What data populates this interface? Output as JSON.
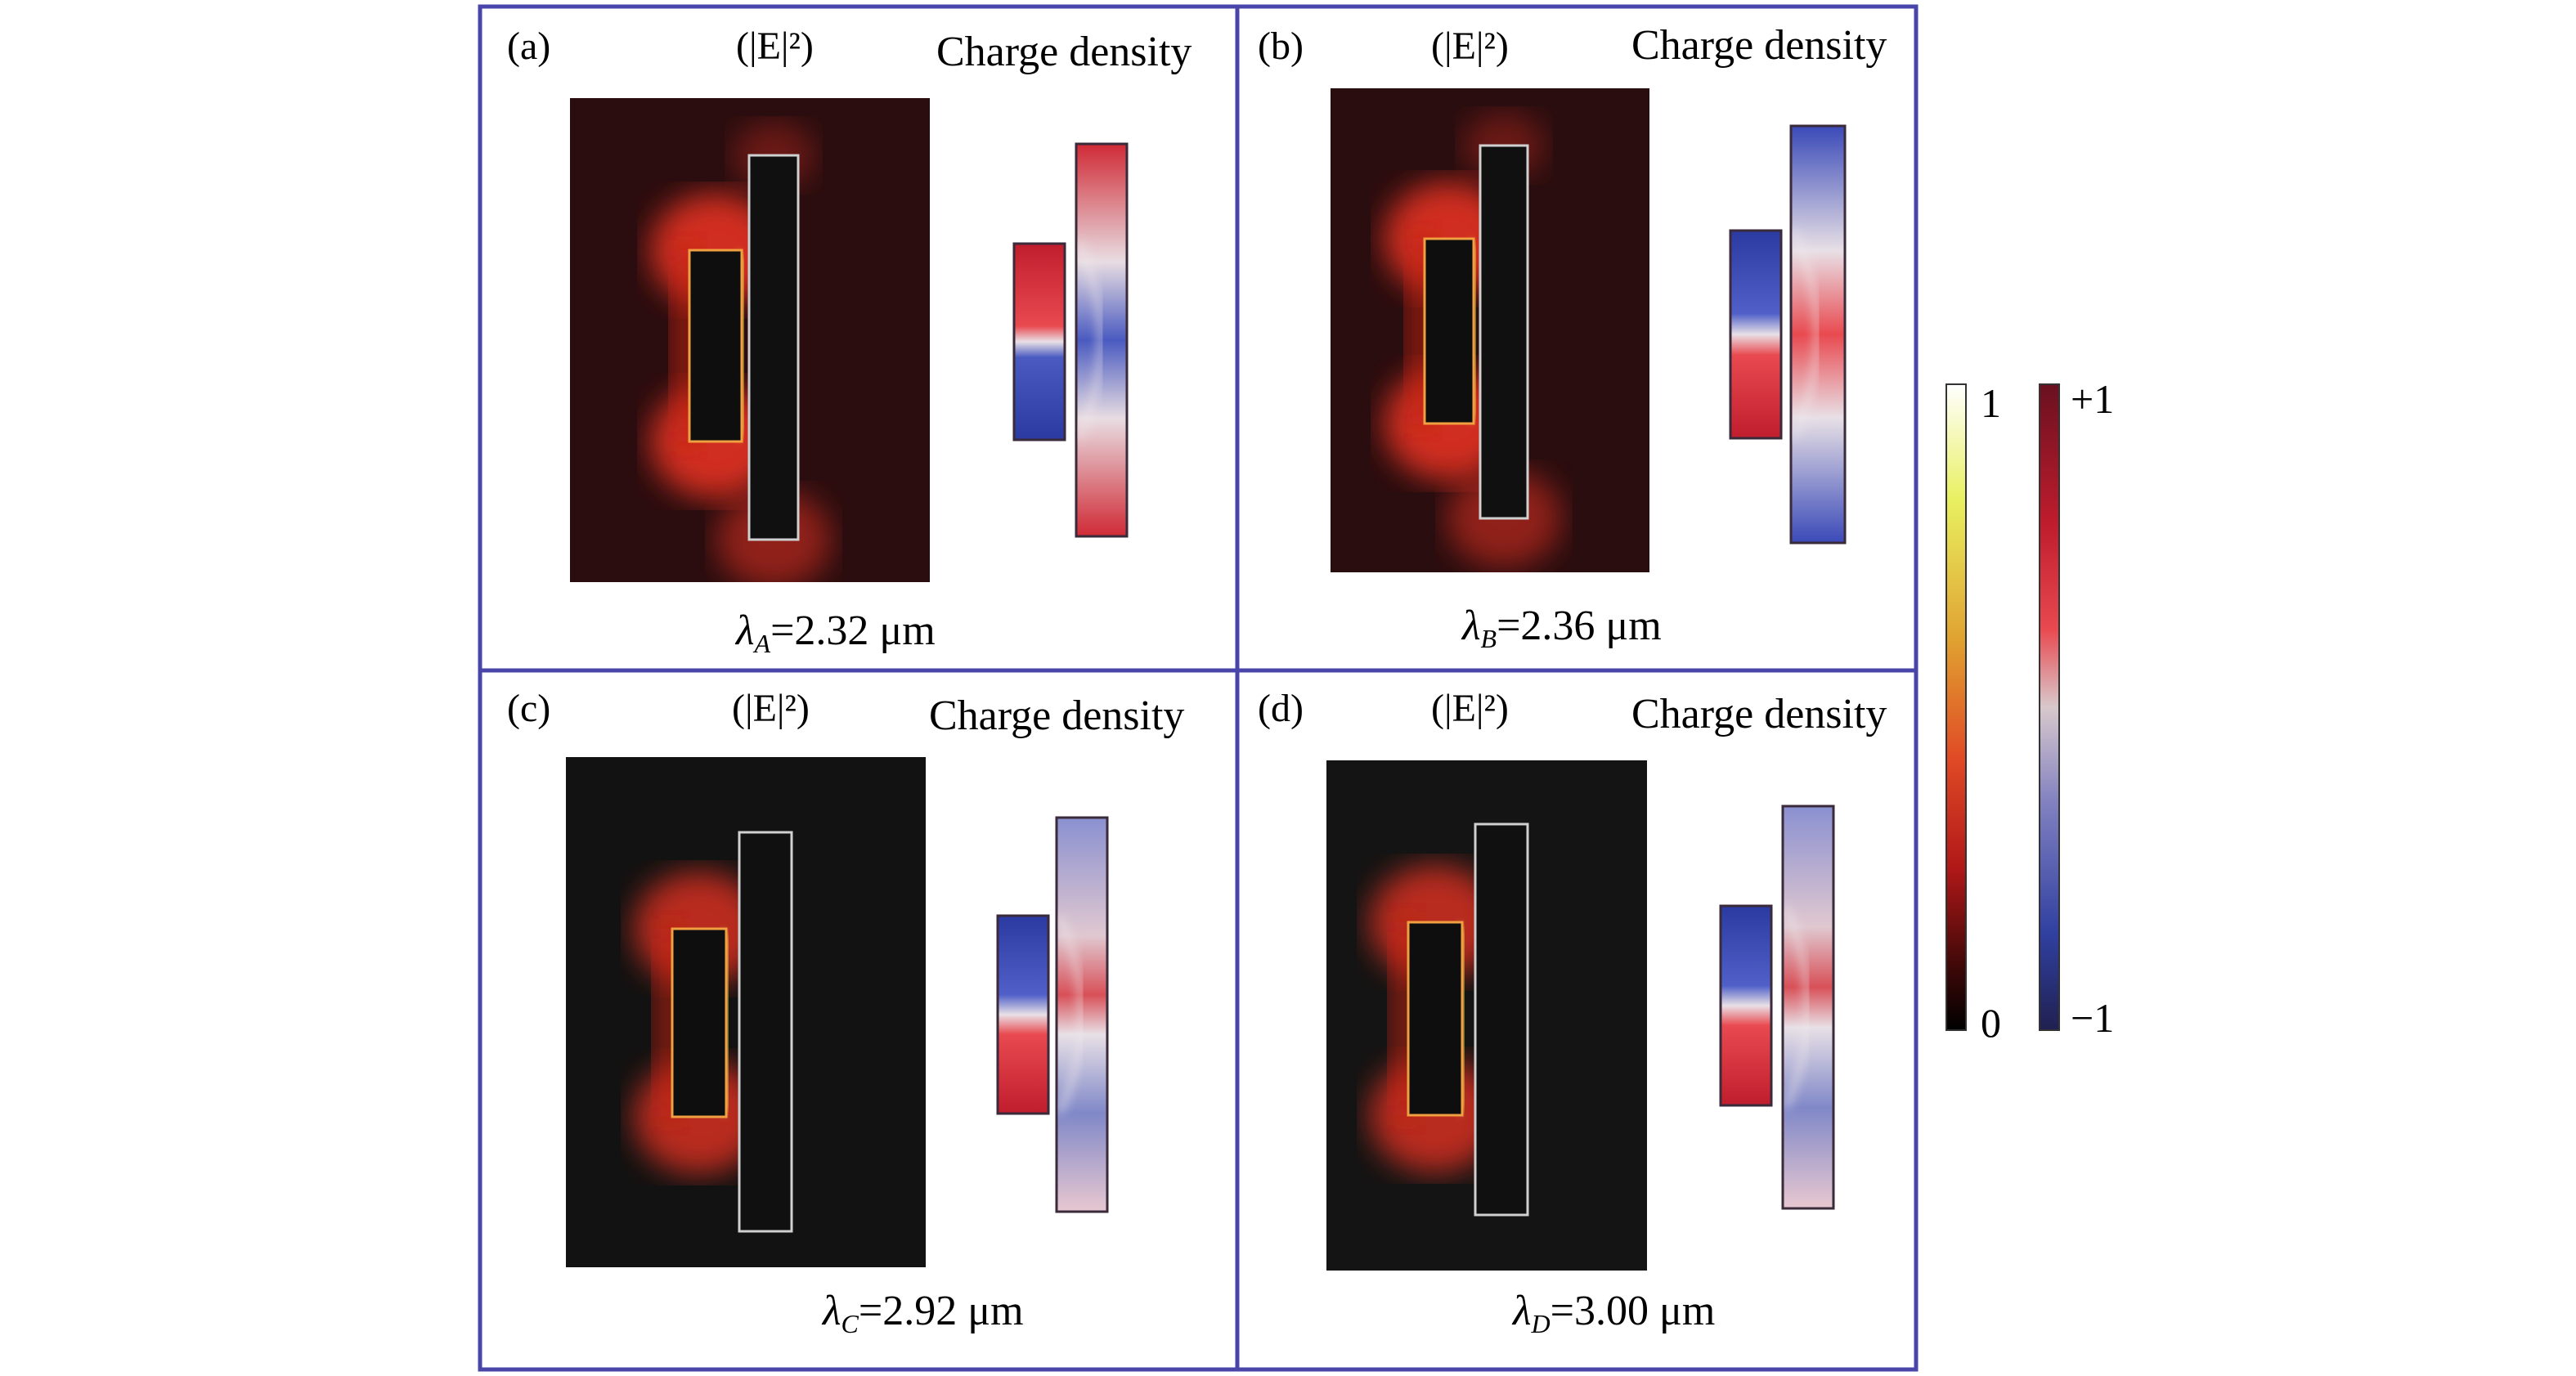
{
  "figure": {
    "panels": [
      {
        "id": "a",
        "label": "(a)",
        "field_title": "(|E|²)",
        "charge_title": "Charge density",
        "lambda_symbol": "λ",
        "lambda_sub": "A",
        "lambda_value": "=2.32 μm",
        "background": "#2b0d0f"
      },
      {
        "id": "b",
        "label": "(b)",
        "field_title": "(|E|²)",
        "charge_title": "Charge density",
        "lambda_symbol": "λ",
        "lambda_sub": "B",
        "lambda_value": "=2.36 μm",
        "background": "#2a0d0f"
      },
      {
        "id": "c",
        "label": "(c)",
        "field_title": "(|E|²)",
        "charge_title": "Charge density",
        "lambda_symbol": "λ",
        "lambda_sub": "C",
        "lambda_value": "=2.92 μm",
        "background": "#121212"
      },
      {
        "id": "d",
        "label": "(d)",
        "field_title": "(|E|²)",
        "charge_title": "Charge density",
        "lambda_symbol": "λ",
        "lambda_sub": "D",
        "lambda_value": "=3.00 μm",
        "background": "#141414"
      }
    ],
    "colorbar_field": {
      "max_label": "1",
      "min_label": "0",
      "colors": [
        "#ffffff",
        "#e8f060",
        "#e0a030",
        "#e04a25",
        "#b01818",
        "#400808",
        "#000000"
      ]
    },
    "colorbar_charge": {
      "max_label": "+1",
      "min_label": "−1",
      "colors": [
        "#6a1020",
        "#c01d2d",
        "#e84a50",
        "#d8c8cc",
        "#8080c0",
        "#3040a0",
        "#202050"
      ]
    },
    "frame_color": "#4a45a8"
  }
}
